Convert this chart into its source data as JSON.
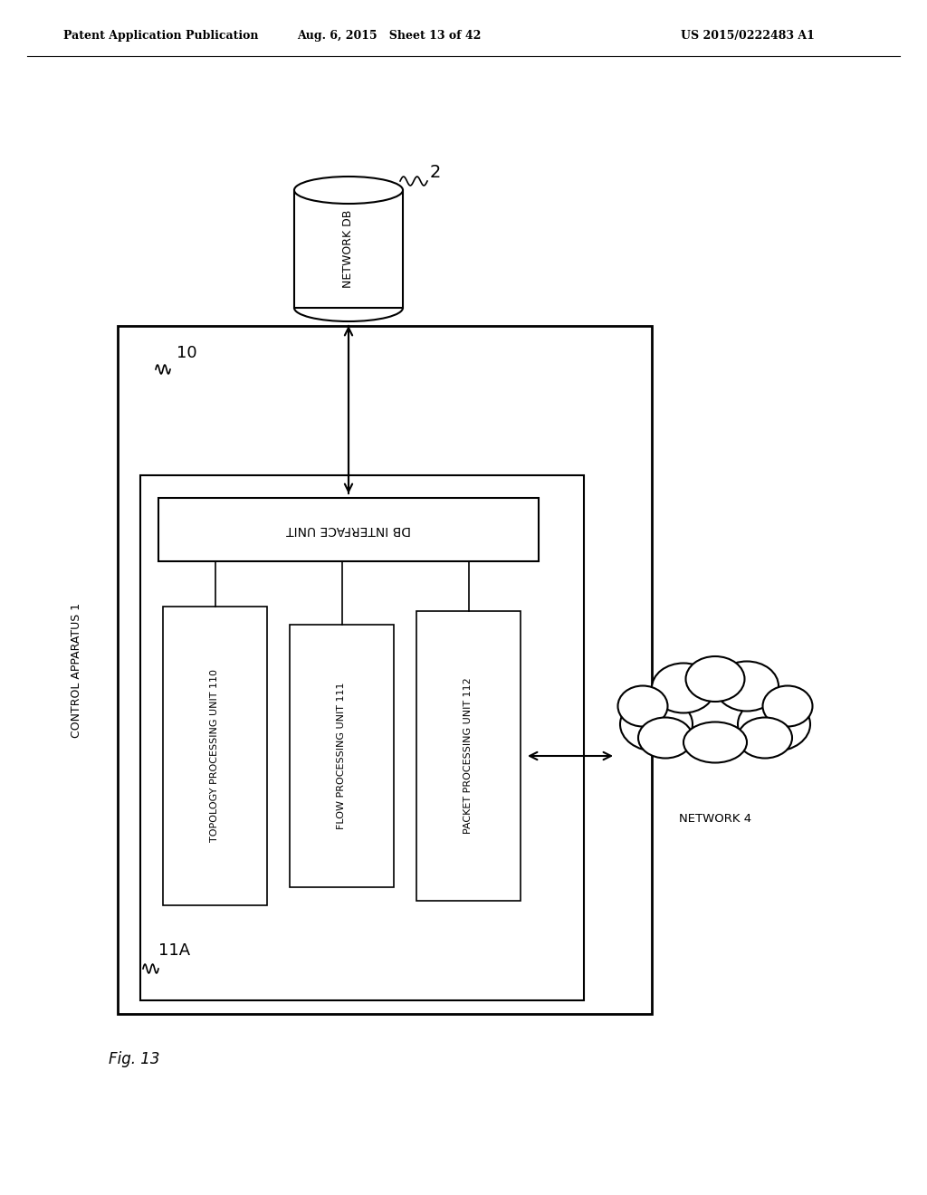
{
  "bg_color": "#ffffff",
  "header_left": "Patent Application Publication",
  "header_mid": "Aug. 6, 2015   Sheet 13 of 42",
  "header_right": "US 2015/0222483 A1",
  "fig_label": "Fig. 13",
  "control_apparatus_label": "CONTROL APPARATUS 1",
  "label_10": "10",
  "label_11a": "11A",
  "db_interface_label": "DB INTERFACE UNIT",
  "topology_label": "TOPOLOGY PROCESSING UNIT 110",
  "flow_label": "FLOW PROCESSING UNIT 111",
  "packet_label": "PACKET PROCESSING UNIT 112",
  "network_db_label": "NETWORK DB",
  "network_db_ref": "2",
  "network_label": "NETWORK 4",
  "font_size_header": 9,
  "font_size_box": 7.5,
  "font_size_label": 9,
  "font_size_ref": 12
}
